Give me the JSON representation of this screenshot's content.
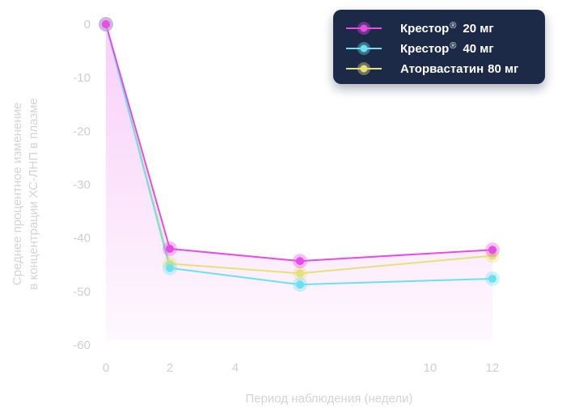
{
  "chart_data": {
    "type": "line",
    "x": [
      0,
      2,
      6,
      12
    ],
    "series": [
      {
        "name": "Крестор",
        "name_sup": "®",
        "name_dose": "20 мг",
        "color": "#e64ce6",
        "values": [
          0,
          -42,
          -44.3,
          -42.2
        ]
      },
      {
        "name": "Крестор",
        "name_sup": "®",
        "name_dose": "40 мг",
        "color": "#6ce0ee",
        "values": [
          0,
          -45.6,
          -48.7,
          -47.6
        ]
      },
      {
        "name": "Аторвастатин",
        "name_sup": "",
        "name_dose": "80 мг",
        "color": "#e6e07a",
        "values": [
          0,
          -44.8,
          -46.6,
          -43.3
        ]
      }
    ],
    "area_series_index": 0,
    "area_color": "#f3a8f3",
    "xticks": [
      0,
      2,
      4,
      10,
      12
    ],
    "yticks": [
      0,
      -10,
      -20,
      -30,
      -40,
      -50,
      -60
    ],
    "xlabel": "Период наблюдения (недели)",
    "ylabel_line1": "Среднее процентное изменение",
    "ylabel_line2": "в концентрации ХС-ЛНП в плазме",
    "legend_position": "top-right",
    "legend_bg": "#1f2a47",
    "grid": false
  }
}
